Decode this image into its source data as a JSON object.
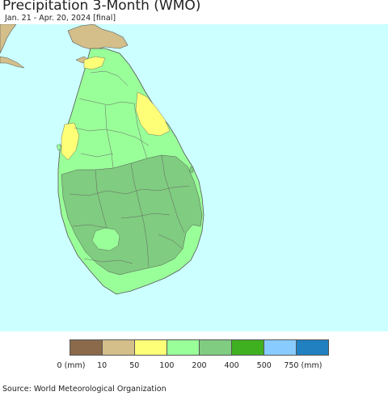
{
  "title": "Precipitation 3-Month (WMO)",
  "subtitle": "Jan. 21 - Apr. 20, 2024 [final]",
  "source": "Source: World Meteorological Organization",
  "map": {
    "ocean_color": "#ccffff",
    "land_color_neighbor": "#d4bf8a",
    "border_color": "#555555"
  },
  "legend": {
    "colors": [
      "#8a6a4a",
      "#d4bf8a",
      "#ffff77",
      "#99ff99",
      "#80cc80",
      "#3fb020",
      "#88ccff",
      "#2080c0"
    ],
    "labels": [
      "0 (mm)",
      "10",
      "50",
      "100",
      "200",
      "400",
      "500",
      "750 (mm)"
    ]
  }
}
